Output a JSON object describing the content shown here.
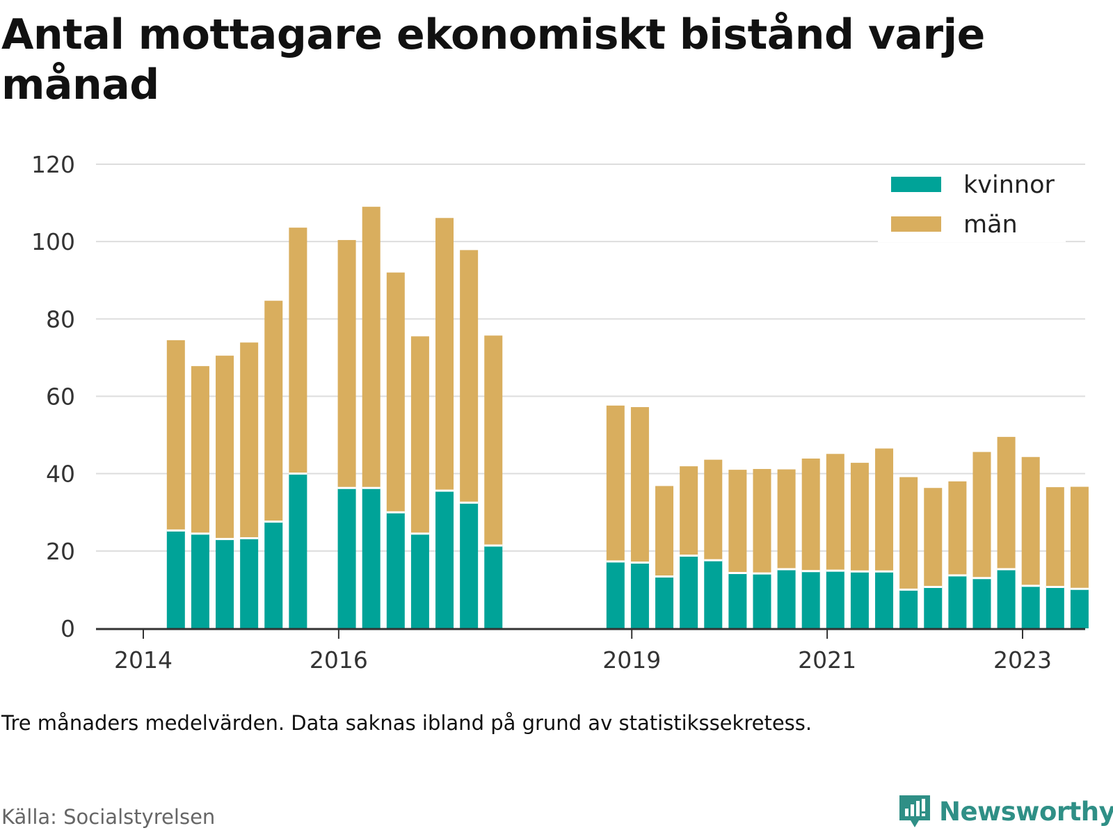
{
  "title": "Antal mottagare ekonomiskt bistånd varje månad",
  "note": "Tre månaders medelvärden. Data saknas ibland på grund av statistikssekretess.",
  "source": "Källa: Socialstyrelsen",
  "brand": "Newsworthy",
  "colors": {
    "kvinnor": "#00a398",
    "man": "#d9ae5e",
    "grid": "#dddddd",
    "axis": "#333333",
    "brand": "#2f8f86"
  },
  "chart_data": {
    "type": "bar",
    "stacked": true,
    "grid": true,
    "legend_position": "top-right",
    "ylim": [
      0,
      120
    ],
    "yticks": [
      0,
      20,
      40,
      60,
      80,
      100,
      120
    ],
    "xticks": [
      {
        "label": "2014",
        "x": "2014-01"
      },
      {
        "label": "2016",
        "x": "2016-01"
      },
      {
        "label": "2019",
        "x": "2019-01"
      },
      {
        "label": "2021",
        "x": "2021-01"
      },
      {
        "label": "2023",
        "x": "2023-01"
      }
    ],
    "categories": [
      "2014-05",
      "2014-08",
      "2014-11",
      "2015-02",
      "2015-05",
      "2015-08",
      "2016-02",
      "2016-05",
      "2016-08",
      "2016-11",
      "2017-02",
      "2017-05",
      "2017-08",
      "2018-11",
      "2019-02",
      "2019-05",
      "2019-08",
      "2019-11",
      "2020-02",
      "2020-05",
      "2020-08",
      "2020-11",
      "2021-02",
      "2021-05",
      "2021-08",
      "2021-11",
      "2022-02",
      "2022-05",
      "2022-08",
      "2022-11",
      "2023-02",
      "2023-05",
      "2023-08"
    ],
    "series": [
      {
        "name": "kvinnor",
        "values": [
          25.3,
          24.5,
          23.1,
          23.3,
          27.6,
          40,
          36.3,
          36.3,
          30,
          24.5,
          35.6,
          32.5,
          21.4,
          17.3,
          17,
          13.4,
          18.8,
          17.6,
          14.3,
          14.2,
          15.3,
          14.8,
          14.9,
          14.7,
          14.7,
          10,
          10.7,
          13.7,
          13,
          15.3,
          11,
          10.7,
          10.2
        ]
      },
      {
        "name": "män",
        "values": [
          49.2,
          43.3,
          47.4,
          50.6,
          57.1,
          63.6,
          64.1,
          72.7,
          62,
          51,
          70.5,
          65.3,
          54.3,
          40.3,
          40.2,
          23.4,
          23.1,
          26,
          26.7,
          27,
          25.8,
          29.1,
          30.2,
          28.1,
          31.8,
          29.1,
          25.6,
          24.3,
          32.6,
          34.2,
          33.3,
          25.8,
          26.4
        ]
      }
    ]
  }
}
